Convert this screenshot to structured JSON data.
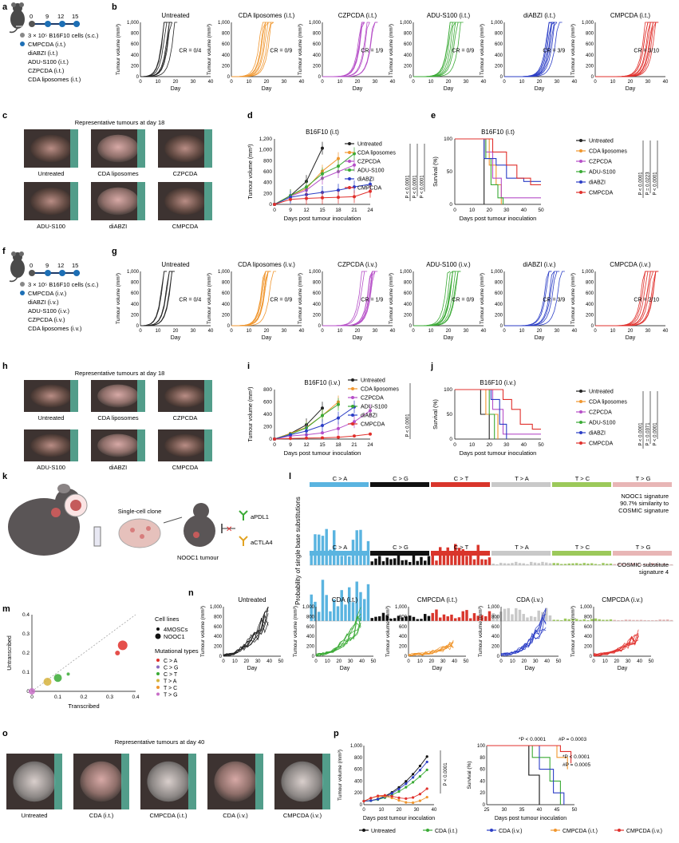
{
  "panels": {
    "a": {
      "label": "a",
      "timeline": [
        "0",
        "9",
        "12",
        "15"
      ],
      "lines": [
        "3 × 10⁵ B16F10 cells (s.c.)",
        "CMPCDA (i.t.)",
        "diABZI (i.t.)",
        "ADU-S100 (i.t.)",
        "CZPCDA (i.t.)",
        "CDA liposomes (i.t.)"
      ]
    },
    "b": {
      "label": "b",
      "ylabel": "Tumour volume (mm³)",
      "xlabel": "Day",
      "yticks": [
        "0",
        "200",
        "400",
        "600",
        "800",
        "1,000"
      ],
      "xticks": [
        "0",
        "10",
        "20",
        "30",
        "40"
      ],
      "plots": [
        {
          "title": "Untreated",
          "cr": "CR = 0/4",
          "color": "#222222"
        },
        {
          "title": "CDA liposomes (i.t.)",
          "cr": "CR = 0/9",
          "color": "#f0962e"
        },
        {
          "title": "CZPCDA (i.t.)",
          "cr": "CR = 1/9",
          "color": "#b64fc8"
        },
        {
          "title": "ADU-S100 (i.t.)",
          "cr": "CR = 0/9",
          "color": "#3aaa35"
        },
        {
          "title": "diABZI (i.t.)",
          "cr": "CR = 3/9",
          "color": "#2c3ec6"
        },
        {
          "title": "CMPCDA (i.t.)",
          "cr": "CR = 3/10",
          "color": "#e0302c"
        }
      ]
    },
    "c": {
      "label": "c",
      "title": "Representative tumours at day 18",
      "captions": [
        "Untreated",
        "CDA liposomes",
        "CZPCDA",
        "ADU-S100",
        "diABZI",
        "CMPCDA"
      ]
    },
    "d": {
      "label": "d",
      "title": "B16F10 (i.t)",
      "ylabel": "Tumour volume (mm³)",
      "xlabel": "Days post tumour inoculation",
      "yticks": [
        "0",
        "200",
        "400",
        "600",
        "800",
        "1,000",
        "1,200"
      ],
      "xticks": [
        "0",
        "9",
        "12",
        "15",
        "18",
        "21",
        "24"
      ],
      "pvals": [
        "P < 0.0001",
        "P < 0.0001",
        "P < 0.0001"
      ]
    },
    "e": {
      "label": "e",
      "title": "B16F10 (i.t)",
      "ylabel": "Survival (%)",
      "xlabel": "Days post tumour inoculation",
      "yticks": [
        "0",
        "50",
        "100"
      ],
      "xticks": [
        "0",
        "10",
        "20",
        "30",
        "40",
        "50"
      ],
      "pvals": [
        "P < 0.0001",
        "P = 0.0223",
        "P < 0.0001"
      ]
    },
    "f": {
      "label": "f",
      "timeline": [
        "0",
        "9",
        "12",
        "15"
      ],
      "lines": [
        "3 × 10⁵ B16F10 cells (s.c.)",
        "CMPCDA (i.v.)",
        "diABZI (i.v.)",
        "ADU-S100 (i.v.)",
        "CZPCDA (i.v.)",
        "CDA liposomes (i.v.)"
      ]
    },
    "g": {
      "label": "g",
      "ylabel": "Tumour volume (mm³)",
      "xlabel": "Day",
      "plots": [
        {
          "title": "Untreated",
          "cr": "CR = 0/4",
          "color": "#222222"
        },
        {
          "title": "CDA liposomes (i.v.)",
          "cr": "CR = 0/9",
          "color": "#f0962e"
        },
        {
          "title": "CZPCDA (i.v.)",
          "cr": "CR = 1/9",
          "color": "#b64fc8"
        },
        {
          "title": "ADU-S100 (i.v.)",
          "cr": "CR = 0/9",
          "color": "#3aaa35"
        },
        {
          "title": "diABZI (i.v.)",
          "cr": "CR = 3/9",
          "color": "#2c3ec6"
        },
        {
          "title": "CMPCDA (i.v.)",
          "cr": "CR = 2/10",
          "color": "#e0302c"
        }
      ]
    },
    "h": {
      "label": "h",
      "title": "Representative tumours at day 18",
      "captions": [
        "Untreated",
        "CDA liposomes",
        "CZPCDA",
        "ADU-S100",
        "diABZI",
        "CMPCDA"
      ]
    },
    "i": {
      "label": "i",
      "title": "B16F10 (i.v.)",
      "ylabel": "Tumour volume (mm³)",
      "xlabel": "Days post tumour inoculation",
      "yticks": [
        "0",
        "200",
        "400",
        "600",
        "800"
      ],
      "xticks": [
        "0",
        "9",
        "12",
        "15",
        "18",
        "21",
        "24"
      ],
      "pval": "P < 0.0001"
    },
    "j": {
      "label": "j",
      "title": "B16F10 (i.v.)",
      "ylabel": "Survival (%)",
      "xlabel": "Days post tumour inoculation",
      "pvals": [
        "P < 0.0001",
        "P = 0.0371",
        "P < 0.0001"
      ]
    },
    "k": {
      "label": "k",
      "clone": "Single-cell clone",
      "tumour": "NOOC1 tumour",
      "drugs": [
        "aPDL1",
        "aCTLA4"
      ]
    },
    "l": {
      "label": "l",
      "ylabel": "Probability of single base substitutions",
      "cats": [
        "C > A",
        "C > G",
        "C > T",
        "T > A",
        "T > C",
        "T > G"
      ],
      "catColors": [
        "#5ab4e0",
        "#111111",
        "#d9352b",
        "#c9c9c9",
        "#9cc95a",
        "#e8b6b6"
      ],
      "sig1": [
        "NOOC1 signature",
        "90.7% similarity to",
        "COSMIC signature"
      ],
      "sig2": [
        "COSMIC substitute",
        "signature 4"
      ]
    },
    "m": {
      "label": "m",
      "ylabel": "Untranscribed",
      "xlabel": "Transcribed",
      "yticks": [
        "0",
        "0.1",
        "0.2",
        "0.3",
        "0.4"
      ],
      "xticks": [
        "0",
        "0.1",
        "0.2",
        "0.3",
        "0.4"
      ],
      "legendTitle1": "Cell lines",
      "cellLines": [
        "4MOSCs",
        "NOOC1"
      ],
      "legendTitle2": "Mutational types",
      "mutTypes": [
        "C > A",
        "C > G",
        "C > T",
        "T > A",
        "T > C",
        "T > G"
      ]
    },
    "n": {
      "label": "n",
      "ylabel": "Tumour volume (mm³)",
      "xlabel": "Day",
      "plots": [
        {
          "title": "Untreated",
          "color": "#222222"
        },
        {
          "title": "CDA (i.t.)",
          "color": "#3aaa35"
        },
        {
          "title": "CMPCDA (i.t.)",
          "color": "#f0962e"
        },
        {
          "title": "CDA (i.v.)",
          "color": "#2c3ec6"
        },
        {
          "title": "CMPCDA (i.v.)",
          "color": "#e0302c"
        }
      ]
    },
    "o": {
      "label": "o",
      "title": "Representative tumours at day 40",
      "captions": [
        "Untreated",
        "CDA (i.t.)",
        "CMPCDA (i.t.)",
        "CDA (i.v.)",
        "CMPCDA (i.v.)"
      ]
    },
    "p": {
      "label": "p",
      "ylabel1": "Tumour volume (mm³)",
      "ylabel2": "Survival (%)",
      "xlabel": "Days post tumour inoculation",
      "pval": "P < 0.0001",
      "annots": [
        "*P < 0.0001",
        "#P = 0.0003",
        "*P < 0.0001",
        "#P = 0.0005"
      ],
      "legend": [
        "Untreated",
        "CDA (i.t.)",
        "CDA (i.v.)",
        "CMPCDA (i.t.)",
        "CMPCDA (i.v.)"
      ]
    }
  },
  "legend6": {
    "names": [
      "Untreated",
      "CDA liposomes",
      "CZPCDA",
      "ADU-S100",
      "diABZI",
      "CMPCDA"
    ],
    "colors": [
      "#222222",
      "#f0962e",
      "#b64fc8",
      "#3aaa35",
      "#2c3ec6",
      "#e0302c"
    ]
  },
  "chart_data": [
    {
      "type": "line",
      "title": "B16F10 (i.t)",
      "xlabel": "Days post tumour inoculation",
      "ylabel": "Tumour volume (mm³)",
      "x": [
        0,
        9,
        12,
        15,
        18,
        21,
        24
      ],
      "ylim": [
        0,
        1200
      ],
      "series": [
        {
          "name": "Untreated",
          "values": [
            0,
            160,
            420,
            1030,
            null,
            null,
            null
          ]
        },
        {
          "name": "CDA liposomes",
          "values": [
            0,
            160,
            290,
            610,
            840,
            null,
            null
          ]
        },
        {
          "name": "CZPCDA",
          "values": [
            0,
            150,
            260,
            480,
            600,
            720,
            null
          ]
        },
        {
          "name": "ADU-S100",
          "values": [
            0,
            160,
            320,
            560,
            700,
            930,
            null
          ]
        },
        {
          "name": "diABZI",
          "values": [
            0,
            130,
            180,
            220,
            260,
            320,
            370
          ]
        },
        {
          "name": "CMPCDA",
          "values": [
            0,
            90,
            110,
            120,
            130,
            140,
            240
          ]
        }
      ]
    },
    {
      "type": "line",
      "title": "B16F10 (i.v.)",
      "xlabel": "Days post tumour inoculation",
      "ylabel": "Tumour volume (mm³)",
      "x": [
        0,
        9,
        12,
        15,
        18,
        21,
        24
      ],
      "ylim": [
        0,
        800
      ],
      "series": [
        {
          "name": "Untreated",
          "values": [
            0,
            90,
            230,
            500,
            null,
            null,
            null
          ]
        },
        {
          "name": "CDA liposomes",
          "values": [
            0,
            90,
            190,
            380,
            600,
            null,
            null
          ]
        },
        {
          "name": "CZPCDA",
          "values": [
            0,
            50,
            70,
            100,
            170,
            280,
            460
          ]
        },
        {
          "name": "ADU-S100",
          "values": [
            0,
            80,
            180,
            380,
            560,
            null,
            null
          ]
        },
        {
          "name": "diABZI",
          "values": [
            0,
            70,
            130,
            220,
            340,
            520,
            null
          ]
        },
        {
          "name": "CMPCDA",
          "values": [
            0,
            10,
            15,
            20,
            30,
            50,
            80
          ]
        }
      ]
    }
  ]
}
